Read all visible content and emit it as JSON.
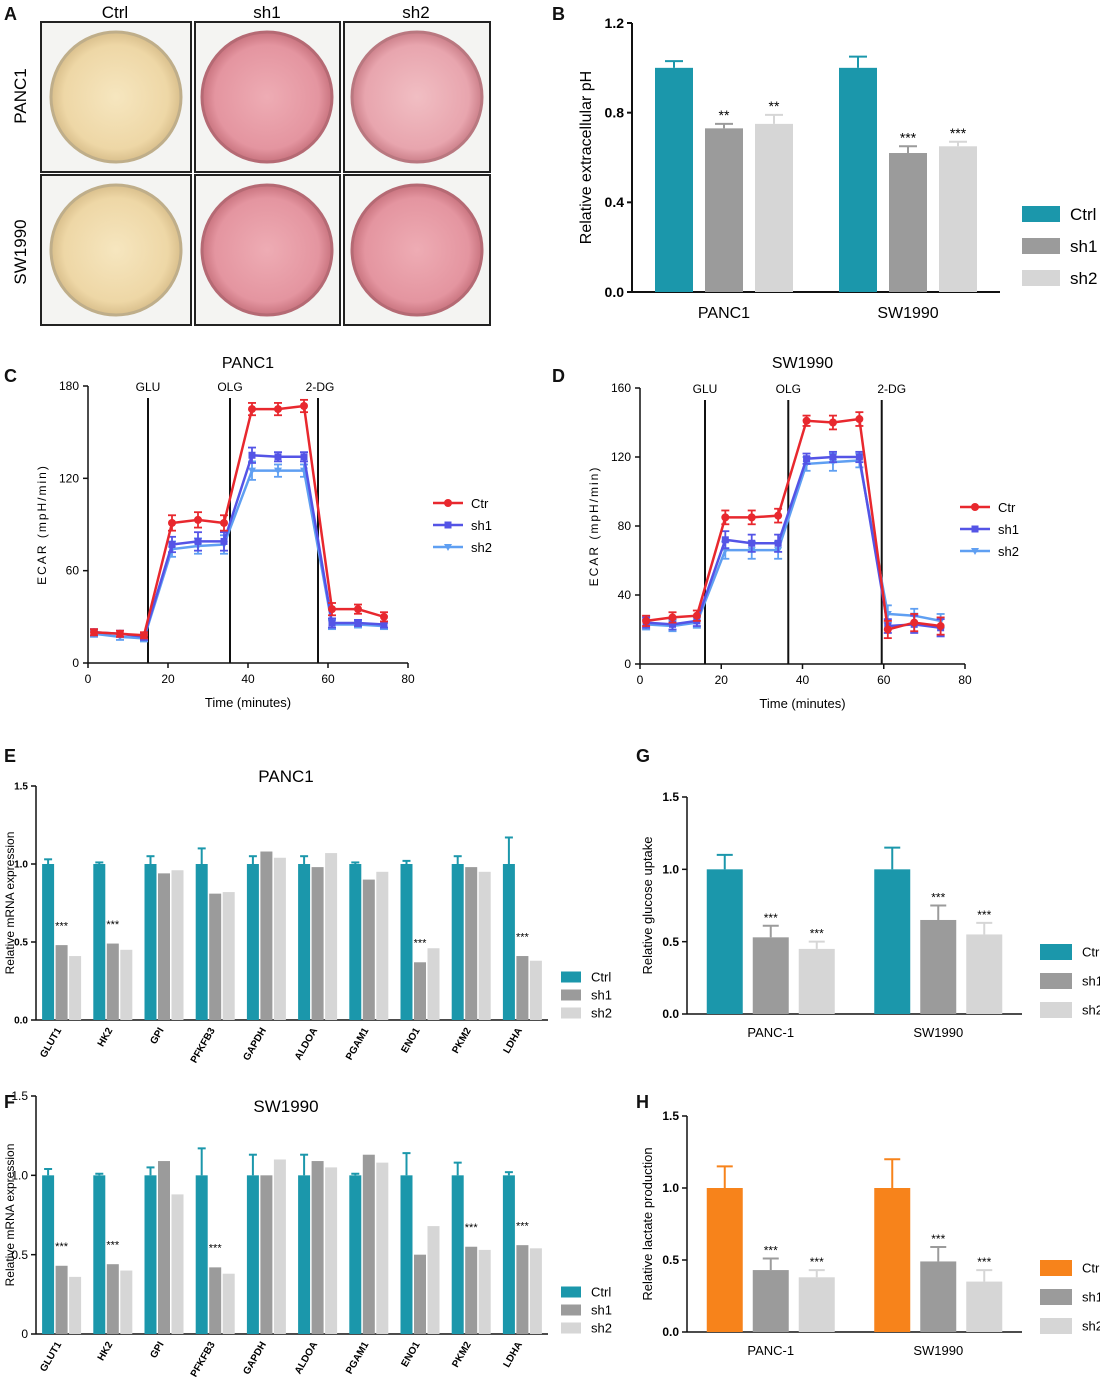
{
  "colors": {
    "ctrl": "#1b97ab",
    "sh1": "#9b9b9b",
    "sh2": "#d6d6d6",
    "ctr_line": "#e8282e",
    "sh1_line": "#5454e6",
    "sh2_line": "#5f9ff2",
    "lactate_ctrl": "#f7831b"
  },
  "panel_letters": {
    "A": "A",
    "B": "B",
    "C": "C",
    "D": "D",
    "E": "E",
    "F": "F",
    "G": "G",
    "H": "H"
  },
  "panel_a": {
    "columns": [
      "Ctrl",
      "sh1",
      "sh2"
    ],
    "rows": [
      "PANC1",
      "SW1990"
    ]
  },
  "chart_data": [
    {
      "id": "B",
      "type": "bar",
      "categories": [
        "PANC1",
        "SW1990"
      ],
      "ylabel": "Relative extracellular pH",
      "ylim": [
        0,
        1.2
      ],
      "yticks": [
        "0.0",
        "0.4",
        "0.8",
        "1.2"
      ],
      "legend_position": "right",
      "series": [
        {
          "name": "Ctrl",
          "values": [
            1.0,
            1.0
          ],
          "errors": [
            0.03,
            0.05
          ],
          "sig": [
            "",
            ""
          ]
        },
        {
          "name": "sh1",
          "values": [
            0.73,
            0.62
          ],
          "errors": [
            0.02,
            0.03
          ],
          "sig": [
            "**",
            "***"
          ]
        },
        {
          "name": "sh2",
          "values": [
            0.75,
            0.65
          ],
          "errors": [
            0.04,
            0.02
          ],
          "sig": [
            "**",
            "***"
          ]
        }
      ]
    },
    {
      "id": "C",
      "type": "line",
      "title": "PANC1",
      "xlabel": "Time (minutes)",
      "ylabel": "ECAR (mpH/min)",
      "xlim": [
        0,
        80
      ],
      "ylim": [
        0,
        180
      ],
      "xticks": [
        "0",
        "20",
        "40",
        "60",
        "80"
      ],
      "yticks": [
        "0",
        "60",
        "120",
        "180"
      ],
      "injections": [
        {
          "label": "GLU",
          "x": 15
        },
        {
          "label": "OLG",
          "x": 35.5
        },
        {
          "label": "2-DG",
          "x": 57.5
        }
      ],
      "x": [
        1.5,
        8,
        14,
        21,
        27.5,
        34,
        41,
        47.5,
        54,
        61,
        67.5,
        74
      ],
      "series": [
        {
          "name": "Ctr",
          "values": [
            20,
            19,
            18,
            91,
            93,
            91,
            165,
            165,
            167,
            35,
            35,
            30
          ],
          "errors": [
            2,
            2,
            2,
            5,
            5,
            5,
            4,
            4,
            4,
            4,
            3,
            3
          ]
        },
        {
          "name": "sh1",
          "values": [
            20,
            19,
            17,
            77,
            79,
            79,
            135,
            134,
            134,
            26,
            26,
            25
          ],
          "errors": [
            2,
            2,
            2,
            5,
            6,
            6,
            5,
            3,
            3,
            3,
            2,
            2
          ]
        },
        {
          "name": "sh2",
          "values": [
            19,
            17,
            16,
            74,
            76,
            77,
            125,
            125,
            125,
            25,
            25,
            24
          ],
          "errors": [
            2,
            2,
            2,
            5,
            5,
            6,
            6,
            4,
            4,
            3,
            2,
            2
          ]
        }
      ]
    },
    {
      "id": "D",
      "type": "line",
      "title": "SW1990",
      "xlabel": "Time (minutes)",
      "ylabel": "ECAR (mpH/min)",
      "xlim": [
        0,
        80
      ],
      "ylim": [
        0,
        160
      ],
      "xticks": [
        "0",
        "20",
        "40",
        "60",
        "80"
      ],
      "yticks": [
        "0",
        "40",
        "80",
        "120",
        "160"
      ],
      "injections": [
        {
          "label": "GLU",
          "x": 16
        },
        {
          "label": "OLG",
          "x": 36.5
        },
        {
          "label": "2-DG",
          "x": 59.5
        }
      ],
      "x": [
        1.5,
        8,
        14,
        21,
        27.5,
        34,
        41,
        47.5,
        54,
        61,
        67.5,
        74
      ],
      "series": [
        {
          "name": "Ctr",
          "values": [
            25,
            27,
            28,
            85,
            85,
            86,
            141,
            140,
            142,
            20,
            24,
            22
          ],
          "errors": [
            3,
            3,
            3,
            4,
            4,
            4,
            3,
            4,
            4,
            5,
            5,
            5
          ]
        },
        {
          "name": "sh1",
          "values": [
            24,
            23,
            25,
            72,
            70,
            70,
            119,
            120,
            120,
            22,
            23,
            21
          ],
          "errors": [
            3,
            3,
            3,
            5,
            5,
            5,
            3,
            3,
            3,
            4,
            5,
            5
          ]
        },
        {
          "name": "sh2",
          "values": [
            23,
            22,
            24,
            66,
            66,
            66,
            116,
            117,
            118,
            29,
            28,
            25
          ],
          "errors": [
            3,
            3,
            3,
            5,
            5,
            5,
            4,
            5,
            4,
            5,
            4,
            4
          ]
        }
      ]
    },
    {
      "id": "E",
      "type": "bar",
      "title": "PANC1",
      "categories": [
        "GLUT1",
        "HK2",
        "GPI",
        "PFKFB3",
        "GAPDH",
        "ALDOA",
        "PGAM1",
        "ENO1",
        "PKM2",
        "LDHA"
      ],
      "ylabel": "Relative mRNA expression",
      "ylim": [
        0,
        1.5
      ],
      "yticks": [
        "0.0",
        "0.5",
        "1.0",
        "1.5"
      ],
      "legend_position": "right",
      "series": [
        {
          "name": "Ctrl",
          "values": [
            1.0,
            1.0,
            1.0,
            1.0,
            1.0,
            1.0,
            1.0,
            1.0,
            1.0,
            1.0
          ],
          "errors": [
            0.03,
            0.01,
            0.05,
            0.1,
            0.05,
            0.05,
            0.01,
            0.02,
            0.05,
            0.17
          ]
        },
        {
          "name": "sh1",
          "values": [
            0.48,
            0.49,
            0.94,
            0.81,
            1.08,
            0.98,
            0.9,
            0.37,
            0.98,
            0.41
          ]
        },
        {
          "name": "sh2",
          "values": [
            0.41,
            0.45,
            0.96,
            0.82,
            1.04,
            1.07,
            0.95,
            0.46,
            0.95,
            0.38
          ]
        }
      ],
      "sig": [
        "***",
        "***",
        "",
        "",
        "",
        "",
        "",
        "***",
        "",
        "***"
      ]
    },
    {
      "id": "F",
      "type": "bar",
      "title": "SW1990",
      "categories": [
        "GLUT1",
        "HK2",
        "GPI",
        "PFKFB3",
        "GAPDH",
        "ALDOA",
        "PGAM1",
        "ENO1",
        "PKM2",
        "LDHA"
      ],
      "ylabel": "Relative mRNA expression",
      "ylim": [
        0,
        1.5
      ],
      "yticks": [
        "0",
        "0.5",
        "1.0",
        "1.5"
      ],
      "legend_position": "right",
      "series": [
        {
          "name": "Ctrl",
          "values": [
            1.0,
            1.0,
            1.0,
            1.0,
            1.0,
            1.0,
            1.0,
            1.0,
            1.0,
            1.0
          ],
          "errors": [
            0.04,
            0.01,
            0.05,
            0.17,
            0.13,
            0.13,
            0.01,
            0.14,
            0.08,
            0.02
          ]
        },
        {
          "name": "sh1",
          "values": [
            0.43,
            0.44,
            1.09,
            0.42,
            1.0,
            1.09,
            1.13,
            0.5,
            0.55,
            0.56
          ]
        },
        {
          "name": "sh2",
          "values": [
            0.36,
            0.4,
            0.88,
            0.38,
            1.1,
            1.05,
            1.08,
            0.68,
            0.53,
            0.54
          ]
        }
      ],
      "sig": [
        "***",
        "***",
        "",
        "***",
        "",
        "",
        "",
        "",
        "***",
        "***"
      ]
    },
    {
      "id": "G",
      "type": "bar",
      "categories": [
        "PANC-1",
        "SW1990"
      ],
      "ylabel": "Relative glucose uptake",
      "ylim": [
        0,
        1.5
      ],
      "yticks": [
        "0.0",
        "0.5",
        "1.0",
        "1.5"
      ],
      "legend_position": "right",
      "series": [
        {
          "name": "Ctrl",
          "values": [
            1.0,
            1.0
          ],
          "errors": [
            0.1,
            0.15
          ],
          "sig": [
            "",
            ""
          ]
        },
        {
          "name": "sh1",
          "values": [
            0.53,
            0.65
          ],
          "errors": [
            0.08,
            0.1
          ],
          "sig": [
            "***",
            "***"
          ]
        },
        {
          "name": "sh2",
          "values": [
            0.45,
            0.55
          ],
          "errors": [
            0.05,
            0.08
          ],
          "sig": [
            "***",
            "***"
          ]
        }
      ]
    },
    {
      "id": "H",
      "type": "bar",
      "categories": [
        "PANC-1",
        "SW1990"
      ],
      "ylabel": "Relative lactate production",
      "ylim": [
        0,
        1.5
      ],
      "yticks": [
        "0.0",
        "0.5",
        "1.0",
        "1.5"
      ],
      "legend_position": "right",
      "series": [
        {
          "name": "Ctrl",
          "values": [
            1.0,
            1.0
          ],
          "errors": [
            0.15,
            0.2
          ],
          "sig": [
            "",
            ""
          ]
        },
        {
          "name": "sh1",
          "values": [
            0.43,
            0.49
          ],
          "errors": [
            0.08,
            0.1
          ],
          "sig": [
            "***",
            "***"
          ]
        },
        {
          "name": "sh2",
          "values": [
            0.38,
            0.35
          ],
          "errors": [
            0.05,
            0.08
          ],
          "sig": [
            "***",
            "***"
          ]
        }
      ]
    }
  ]
}
